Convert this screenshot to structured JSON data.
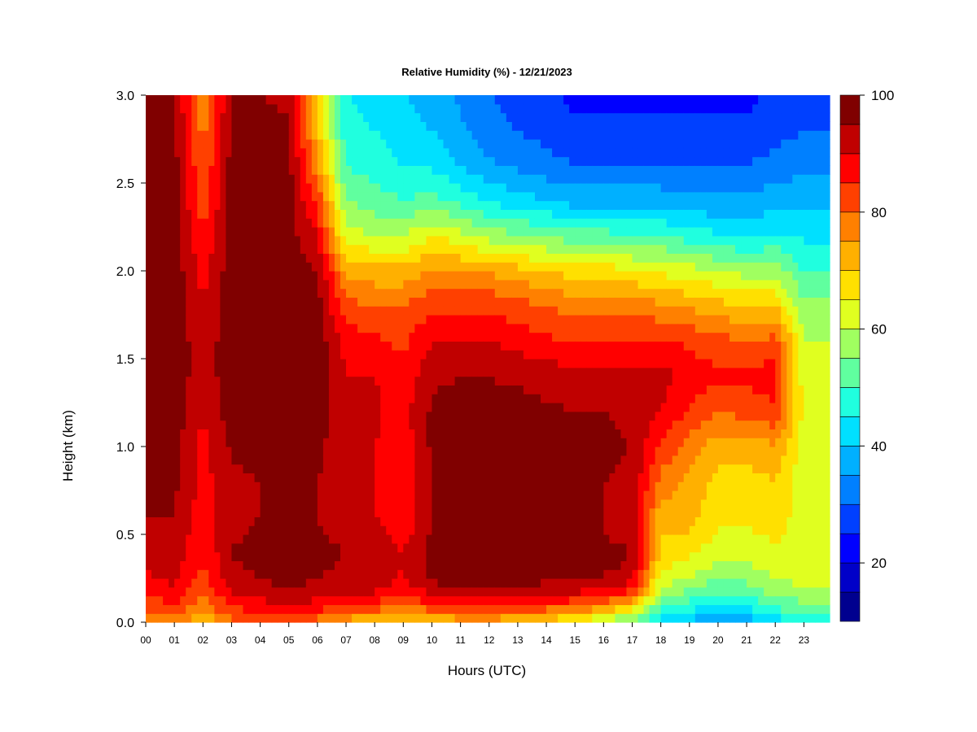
{
  "chart_data": {
    "type": "heatmap",
    "title": "Relative Humidity (%) - 12/21/2023",
    "xlabel": "Hours (UTC)",
    "ylabel": "Height (km)",
    "x_ticks": [
      "00",
      "01",
      "02",
      "03",
      "04",
      "05",
      "06",
      "07",
      "08",
      "09",
      "10",
      "11",
      "12",
      "13",
      "14",
      "15",
      "16",
      "17",
      "18",
      "19",
      "20",
      "21",
      "22",
      "23"
    ],
    "y_ticks": [
      "0.0",
      "0.5",
      "1.0",
      "1.5",
      "2.0",
      "2.5",
      "3.0"
    ],
    "xlim": [
      0,
      23.9
    ],
    "ylim": [
      0,
      3.0
    ],
    "x_hours": [
      0,
      1,
      2,
      3,
      4,
      5,
      6,
      7,
      8,
      9,
      10,
      11,
      12,
      13,
      14,
      15,
      16,
      17,
      18,
      19,
      20,
      21,
      22,
      23
    ],
    "y_km": [
      0.0,
      0.1,
      0.2,
      0.3,
      0.4,
      0.5,
      0.6,
      0.8,
      1.0,
      1.2,
      1.4,
      1.6,
      1.8,
      2.0,
      2.2,
      2.4,
      2.6,
      2.8,
      3.0
    ],
    "rh_columns": [
      [
        75,
        82,
        88,
        90,
        92,
        94,
        95,
        96,
        97,
        98,
        98,
        98,
        98,
        98,
        97,
        97,
        97,
        96,
        95
      ],
      [
        78,
        85,
        90,
        92,
        93,
        94,
        95,
        96,
        97,
        98,
        98,
        98,
        98,
        98,
        97,
        97,
        97,
        96,
        95
      ],
      [
        70,
        78,
        82,
        84,
        85,
        86,
        87,
        88,
        88,
        90,
        92,
        92,
        90,
        88,
        85,
        82,
        80,
        78,
        76
      ],
      [
        78,
        86,
        92,
        94,
        95,
        94,
        94,
        94,
        96,
        98,
        98,
        98,
        98,
        98,
        97,
        97,
        97,
        96,
        95
      ],
      [
        80,
        88,
        94,
        96,
        98,
        96,
        95,
        95,
        96,
        98,
        99,
        99,
        98,
        98,
        97,
        97,
        97,
        96,
        95
      ],
      [
        80,
        90,
        95,
        97,
        98,
        97,
        96,
        96,
        97,
        98,
        99,
        99,
        98,
        98,
        97,
        97,
        97,
        96,
        94
      ],
      [
        78,
        88,
        94,
        96,
        97,
        96,
        95,
        95,
        96,
        97,
        98,
        98,
        97,
        95,
        90,
        84,
        75,
        72,
        70
      ],
      [
        72,
        85,
        92,
        94,
        95,
        93,
        92,
        92,
        92,
        92,
        90,
        88,
        82,
        74,
        62,
        55,
        50,
        47,
        45
      ],
      [
        70,
        84,
        92,
        94,
        95,
        92,
        90,
        90,
        90,
        91,
        90,
        86,
        80,
        72,
        60,
        52,
        48,
        45,
        43
      ],
      [
        68,
        80,
        88,
        90,
        90,
        88,
        86,
        86,
        87,
        88,
        86,
        84,
        80,
        72,
        60,
        50,
        45,
        42,
        40
      ],
      [
        70,
        84,
        94,
        97,
        97,
        96,
        95,
        95,
        96,
        96,
        94,
        90,
        84,
        76,
        65,
        52,
        44,
        40,
        38
      ],
      [
        72,
        86,
        95,
        98,
        98,
        97,
        96,
        96,
        97,
        97,
        95,
        90,
        84,
        75,
        62,
        48,
        40,
        36,
        34
      ],
      [
        72,
        86,
        95,
        98,
        98,
        97,
        96,
        96,
        97,
        97,
        95,
        90,
        84,
        74,
        58,
        44,
        36,
        32,
        30
      ],
      [
        70,
        86,
        95,
        98,
        98,
        97,
        96,
        96,
        97,
        97,
        94,
        88,
        82,
        72,
        56,
        42,
        34,
        30,
        28
      ],
      [
        68,
        84,
        94,
        97,
        97,
        96,
        96,
        96,
        97,
        96,
        93,
        86,
        80,
        70,
        54,
        40,
        32,
        28,
        26
      ],
      [
        62,
        82,
        93,
        96,
        96,
        95,
        95,
        96,
        96,
        95,
        92,
        85,
        78,
        68,
        52,
        38,
        30,
        26,
        24
      ],
      [
        58,
        78,
        92,
        96,
        96,
        95,
        95,
        95,
        96,
        95,
        92,
        86,
        78,
        68,
        52,
        38,
        30,
        26,
        24
      ],
      [
        52,
        70,
        88,
        94,
        95,
        94,
        94,
        94,
        95,
        94,
        92,
        85,
        78,
        66,
        50,
        38,
        30,
        26,
        24
      ],
      [
        42,
        52,
        60,
        66,
        68,
        70,
        72,
        78,
        84,
        90,
        92,
        86,
        76,
        64,
        50,
        38,
        30,
        26,
        24
      ],
      [
        38,
        48,
        56,
        62,
        66,
        70,
        72,
        74,
        78,
        84,
        88,
        84,
        74,
        62,
        48,
        36,
        30,
        26,
        24
      ],
      [
        34,
        44,
        52,
        58,
        62,
        64,
        66,
        68,
        72,
        80,
        86,
        82,
        72,
        60,
        46,
        36,
        30,
        26,
        24
      ],
      [
        36,
        46,
        54,
        58,
        62,
        64,
        66,
        68,
        72,
        82,
        86,
        80,
        70,
        58,
        44,
        36,
        30,
        26,
        24
      ],
      [
        42,
        52,
        58,
        62,
        64,
        66,
        68,
        70,
        74,
        84,
        88,
        82,
        70,
        58,
        46,
        38,
        32,
        28,
        26
      ],
      [
        46,
        54,
        60,
        62,
        62,
        62,
        62,
        62,
        62,
        64,
        62,
        60,
        56,
        50,
        44,
        38,
        34,
        30,
        28
      ]
    ],
    "colorbar": {
      "min": 10,
      "max": 100,
      "step": 5,
      "tick_labels": [
        "20",
        "40",
        "60",
        "80",
        "100"
      ],
      "tick_values": [
        20,
        40,
        60,
        80,
        100
      ],
      "colors": [
        "#00008f",
        "#0000c8",
        "#0000ff",
        "#0040ff",
        "#0080ff",
        "#00b0ff",
        "#00e0ff",
        "#20ffdf",
        "#60ff9f",
        "#a0ff60",
        "#e0ff20",
        "#ffe000",
        "#ffb000",
        "#ff8000",
        "#ff4000",
        "#ff0000",
        "#c00000",
        "#800000"
      ]
    }
  }
}
